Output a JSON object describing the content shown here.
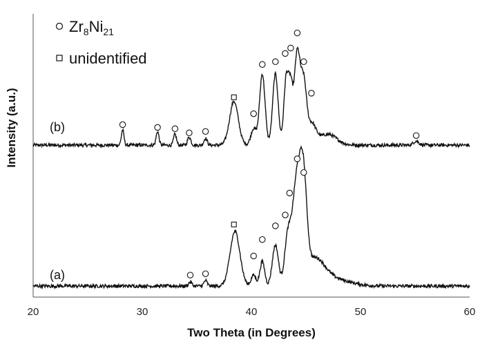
{
  "chart_data": {
    "type": "line",
    "xlabel": "Two Theta (in Degrees)",
    "ylabel": "Intensity (a.u.)",
    "xlim": [
      20,
      60
    ],
    "xticks": [
      "20",
      "30",
      "40",
      "50",
      "60"
    ],
    "grid": false,
    "legend_position": "top-left",
    "legend": {
      "phase": {
        "base": "Zr",
        "sub1": "8",
        "mid": "Ni",
        "sub2": "21",
        "marker": "circle"
      },
      "unidentified": {
        "label": "unidentified",
        "marker": "square"
      }
    },
    "series": [
      {
        "name": "(b)",
        "baseline": 1.05,
        "peaks": [
          {
            "x": 28.2,
            "h": 0.11,
            "w": 0.12
          },
          {
            "x": 31.4,
            "h": 0.1,
            "w": 0.13
          },
          {
            "x": 33.0,
            "h": 0.08,
            "w": 0.13
          },
          {
            "x": 34.3,
            "h": 0.06,
            "w": 0.15
          },
          {
            "x": 35.8,
            "h": 0.05,
            "w": 0.15
          },
          {
            "x": 38.4,
            "h": 0.32,
            "w": 0.4
          },
          {
            "x": 40.2,
            "h": 0.12,
            "w": 0.25
          },
          {
            "x": 41.0,
            "h": 0.52,
            "w": 0.25
          },
          {
            "x": 42.2,
            "h": 0.52,
            "w": 0.25
          },
          {
            "x": 43.2,
            "h": 0.5,
            "w": 0.22
          },
          {
            "x": 43.6,
            "h": 0.35,
            "w": 0.18
          },
          {
            "x": 44.2,
            "h": 0.68,
            "w": 0.28
          },
          {
            "x": 44.8,
            "h": 0.42,
            "w": 0.25
          },
          {
            "x": 45.5,
            "h": 0.15,
            "w": 0.4
          },
          {
            "x": 47.0,
            "h": 0.08,
            "w": 0.8
          },
          {
            "x": 55.1,
            "h": 0.03,
            "w": 0.25
          }
        ],
        "markers": [
          {
            "x": 28.2,
            "y": 1.2,
            "shape": "circle"
          },
          {
            "x": 31.4,
            "y": 1.18,
            "shape": "circle"
          },
          {
            "x": 33.0,
            "y": 1.17,
            "shape": "circle"
          },
          {
            "x": 34.3,
            "y": 1.14,
            "shape": "circle"
          },
          {
            "x": 35.8,
            "y": 1.15,
            "shape": "circle"
          },
          {
            "x": 38.4,
            "y": 1.4,
            "shape": "square"
          },
          {
            "x": 40.2,
            "y": 1.28,
            "shape": "circle"
          },
          {
            "x": 41.0,
            "y": 1.64,
            "shape": "circle"
          },
          {
            "x": 42.2,
            "y": 1.66,
            "shape": "circle"
          },
          {
            "x": 43.1,
            "y": 1.72,
            "shape": "circle"
          },
          {
            "x": 43.6,
            "y": 1.76,
            "shape": "circle"
          },
          {
            "x": 44.2,
            "y": 1.87,
            "shape": "circle"
          },
          {
            "x": 44.8,
            "y": 1.66,
            "shape": "circle"
          },
          {
            "x": 45.5,
            "y": 1.43,
            "shape": "circle"
          },
          {
            "x": 55.1,
            "y": 1.12,
            "shape": "circle"
          }
        ]
      },
      {
        "name": "(a)",
        "baseline": 0.02,
        "peaks": [
          {
            "x": 34.4,
            "h": 0.03,
            "w": 0.15
          },
          {
            "x": 35.8,
            "h": 0.04,
            "w": 0.15
          },
          {
            "x": 38.5,
            "h": 0.4,
            "w": 0.45
          },
          {
            "x": 40.2,
            "h": 0.08,
            "w": 0.22
          },
          {
            "x": 41.0,
            "h": 0.18,
            "w": 0.22
          },
          {
            "x": 42.2,
            "h": 0.3,
            "w": 0.28
          },
          {
            "x": 43.3,
            "h": 0.3,
            "w": 0.28
          },
          {
            "x": 44.2,
            "h": 0.78,
            "w": 0.45
          },
          {
            "x": 44.8,
            "h": 0.5,
            "w": 0.3
          },
          {
            "x": 45.8,
            "h": 0.18,
            "w": 0.9
          },
          {
            "x": 47.5,
            "h": 0.05,
            "w": 1.5
          }
        ],
        "markers": [
          {
            "x": 34.4,
            "y": 0.1,
            "shape": "circle"
          },
          {
            "x": 35.8,
            "y": 0.11,
            "shape": "circle"
          },
          {
            "x": 38.4,
            "y": 0.47,
            "shape": "square"
          },
          {
            "x": 40.2,
            "y": 0.24,
            "shape": "circle"
          },
          {
            "x": 41.0,
            "y": 0.36,
            "shape": "circle"
          },
          {
            "x": 42.2,
            "y": 0.46,
            "shape": "circle"
          },
          {
            "x": 43.1,
            "y": 0.54,
            "shape": "circle"
          },
          {
            "x": 43.5,
            "y": 0.7,
            "shape": "circle"
          },
          {
            "x": 44.2,
            "y": 0.95,
            "shape": "circle"
          },
          {
            "x": 44.8,
            "y": 0.85,
            "shape": "circle"
          }
        ]
      }
    ]
  }
}
